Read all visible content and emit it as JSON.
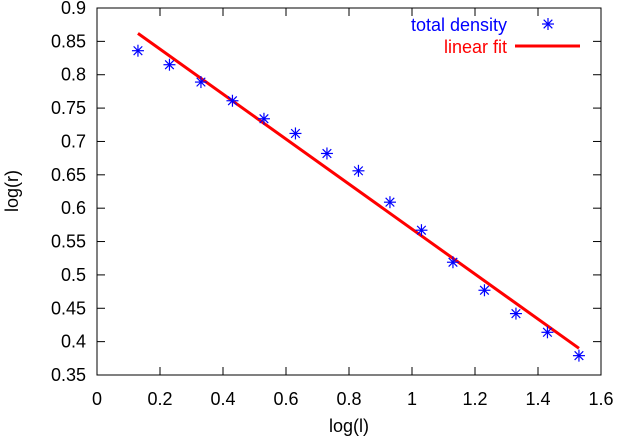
{
  "chart_data": {
    "type": "scatter",
    "xlabel": "log(l)",
    "ylabel": "log(r)",
    "xlim": [
      0,
      1.6
    ],
    "ylim": [
      0.35,
      0.9
    ],
    "xticks": [
      "0",
      "0.2",
      "0.4",
      "0.6",
      "0.8",
      "1",
      "1.2",
      "1.4",
      "1.6"
    ],
    "yticks": [
      "0.35",
      "0.4",
      "0.45",
      "0.5",
      "0.55",
      "0.6",
      "0.65",
      "0.7",
      "0.75",
      "0.8",
      "0.85",
      "0.9"
    ],
    "legend_position": "top-right",
    "series": [
      {
        "name": "total density",
        "kind": "points",
        "marker": "asterisk",
        "color": "#0000ff",
        "x": [
          0.13,
          0.23,
          0.33,
          0.43,
          0.53,
          0.63,
          0.73,
          0.83,
          0.93,
          1.03,
          1.13,
          1.23,
          1.33,
          1.43,
          1.53
        ],
        "y": [
          0.836,
          0.815,
          0.789,
          0.761,
          0.734,
          0.712,
          0.682,
          0.656,
          0.609,
          0.567,
          0.519,
          0.477,
          0.442,
          0.414,
          0.379
        ]
      },
      {
        "name": "linear fit",
        "kind": "line",
        "color": "#ff0000",
        "x": [
          0.13,
          1.53
        ],
        "y": [
          0.862,
          0.39
        ]
      }
    ]
  }
}
